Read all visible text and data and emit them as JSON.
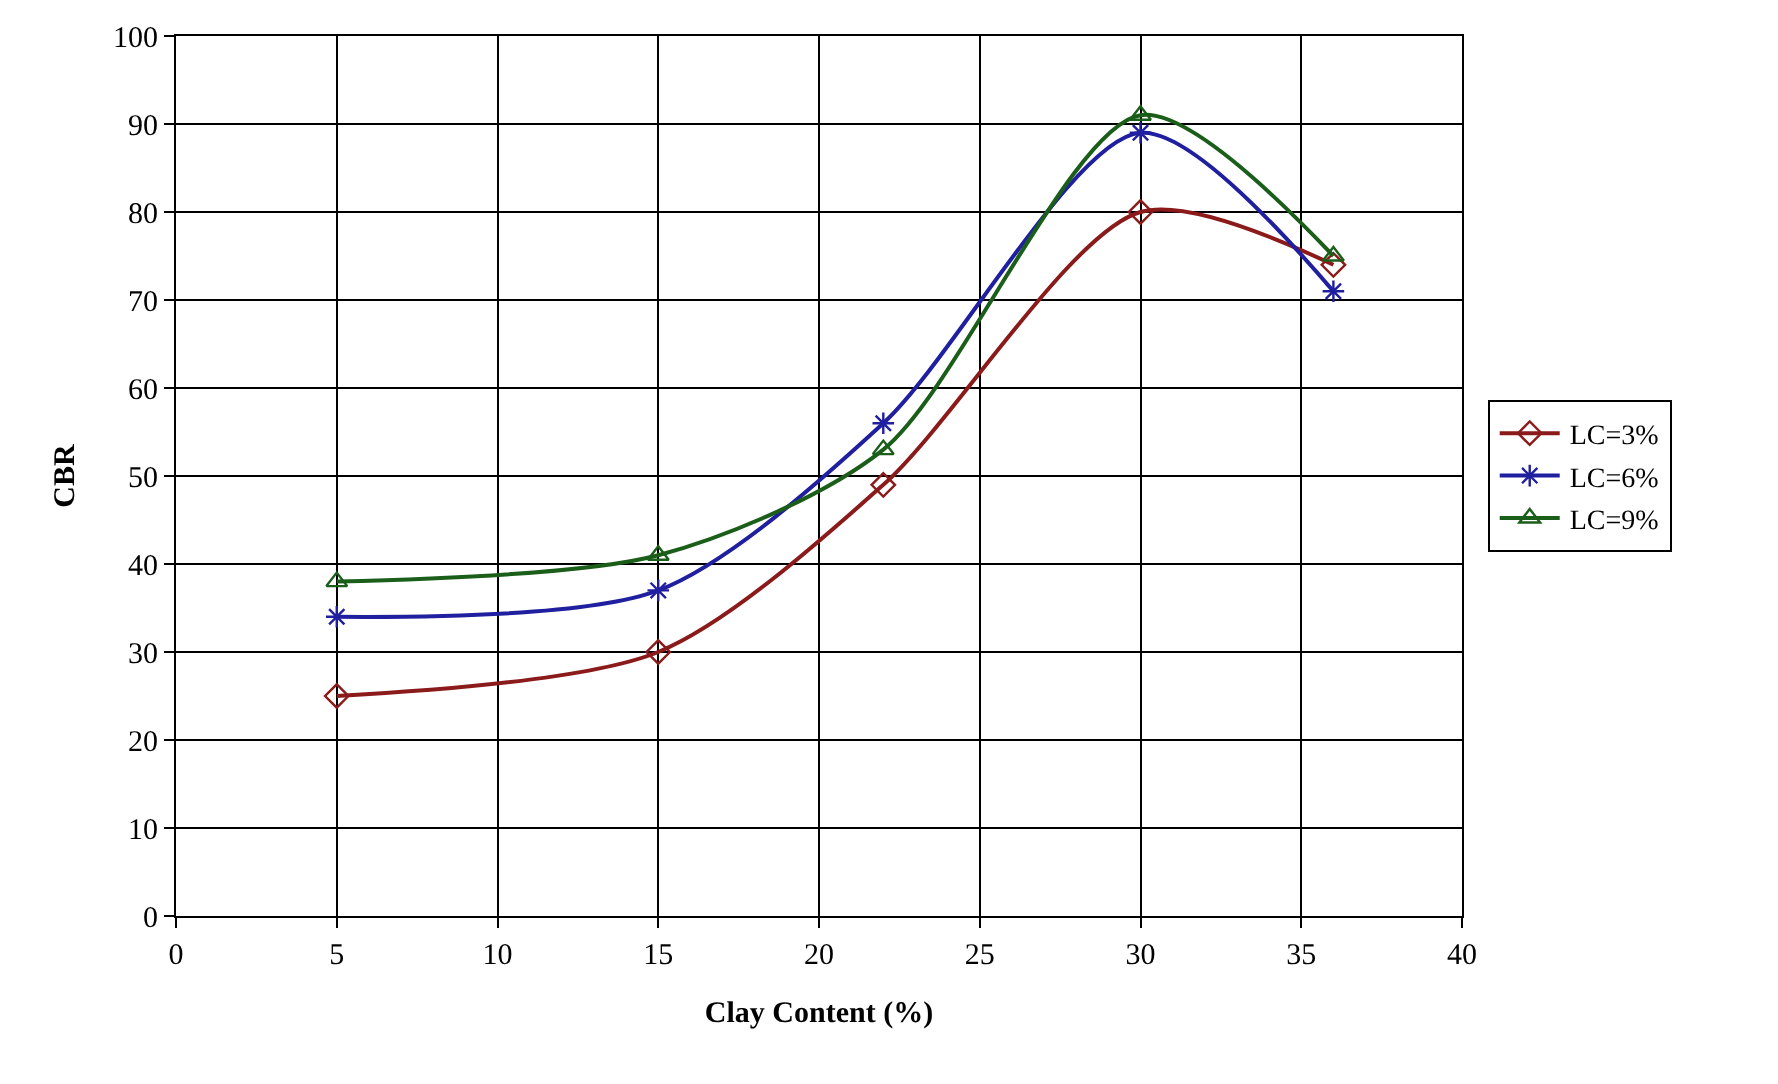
{
  "chart_data": {
    "type": "line",
    "xlabel": "Clay Content (%)",
    "ylabel": "CBR",
    "x": [
      5,
      15,
      22,
      30,
      36
    ],
    "series": [
      {
        "name": "LC=3%",
        "color": "#8b1a1a",
        "marker": "diamond",
        "values": [
          25,
          30,
          49,
          80,
          74
        ]
      },
      {
        "name": "LC=6%",
        "color": "#1f1fa0",
        "marker": "cross",
        "values": [
          34,
          37,
          56,
          89,
          71
        ]
      },
      {
        "name": "LC=9%",
        "color": "#1a5e1a",
        "marker": "triangle",
        "values": [
          38,
          41,
          53,
          91,
          75
        ]
      }
    ],
    "xlim": [
      0,
      40
    ],
    "xticks": [
      0,
      5,
      10,
      15,
      20,
      25,
      30,
      35,
      40
    ],
    "ylim": [
      0,
      100
    ],
    "yticks": [
      0,
      10,
      20,
      30,
      40,
      50,
      60,
      70,
      80,
      90,
      100
    ],
    "grid": true,
    "legend": "right",
    "line_style": "solid"
  }
}
